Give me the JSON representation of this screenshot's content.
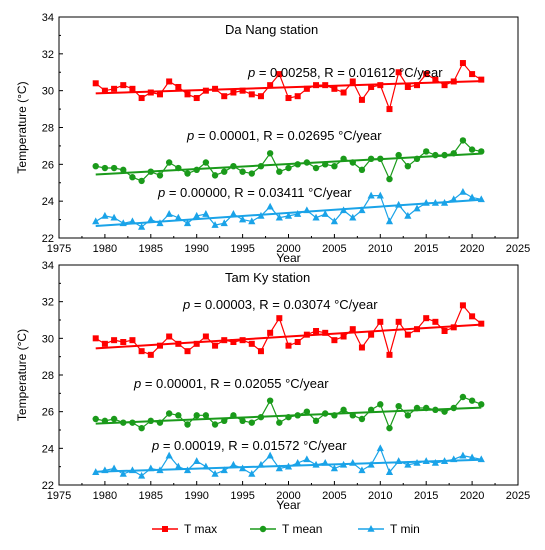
{
  "chart_data": [
    {
      "type": "line",
      "title": "Da Nang station",
      "xlabel": "Year",
      "ylabel": "Temperature (°C)",
      "xlim": [
        1975,
        2025
      ],
      "ylim": [
        22,
        34
      ],
      "xticks": [
        1975,
        1980,
        1985,
        1990,
        1995,
        2000,
        2005,
        2010,
        2015,
        2020,
        2025
      ],
      "yticks": [
        22,
        24,
        26,
        28,
        30,
        32,
        34
      ],
      "x": [
        1979,
        1980,
        1981,
        1982,
        1983,
        1984,
        1985,
        1986,
        1987,
        1988,
        1989,
        1990,
        1991,
        1992,
        1993,
        1994,
        1995,
        1996,
        1997,
        1998,
        1999,
        2000,
        2001,
        2002,
        2003,
        2004,
        2005,
        2006,
        2007,
        2008,
        2009,
        2010,
        2011,
        2012,
        2013,
        2014,
        2015,
        2016,
        2017,
        2018,
        2019,
        2020,
        2021
      ],
      "series": [
        {
          "name": "T max",
          "color": "#ff0000",
          "marker": "square",
          "values": [
            30.4,
            30.0,
            30.1,
            30.3,
            30.1,
            29.6,
            29.9,
            29.8,
            30.5,
            30.2,
            29.8,
            29.6,
            30.0,
            30.1,
            29.7,
            29.9,
            30.0,
            29.8,
            29.7,
            30.3,
            30.9,
            29.6,
            29.7,
            30.1,
            30.3,
            30.3,
            30.1,
            29.9,
            30.5,
            29.5,
            30.2,
            30.3,
            29.0,
            31.0,
            30.2,
            30.3,
            30.9,
            30.6,
            30.3,
            30.5,
            31.5,
            30.9,
            30.6
          ],
          "trend": {
            "p_label": "p",
            "p_value": "= 0.00258",
            "r_label": "R = 0.01612",
            "unit": "°C/year",
            "start": 29.85,
            "end": 30.52
          }
        },
        {
          "name": "T mean",
          "color": "#1a9a1a",
          "marker": "circle",
          "values": [
            25.9,
            25.8,
            25.8,
            25.7,
            25.3,
            25.1,
            25.6,
            25.4,
            26.1,
            25.8,
            25.5,
            25.7,
            26.1,
            25.4,
            25.6,
            25.9,
            25.6,
            25.5,
            25.9,
            26.6,
            25.6,
            25.8,
            26.0,
            26.1,
            25.8,
            26.0,
            25.9,
            26.3,
            26.1,
            25.7,
            26.3,
            26.3,
            25.2,
            26.5,
            25.9,
            26.3,
            26.7,
            26.5,
            26.5,
            26.6,
            27.3,
            26.8,
            26.7
          ],
          "trend": {
            "p_label": "p",
            "p_value": "= 0.00001",
            "r_label": "R = 0.02695",
            "unit": "°C/year",
            "start": 25.45,
            "end": 26.58
          }
        },
        {
          "name": "T min",
          "color": "#1aa3e8",
          "marker": "triangle",
          "values": [
            22.9,
            23.2,
            23.1,
            22.8,
            22.9,
            22.6,
            23.0,
            22.8,
            23.3,
            23.1,
            22.8,
            23.2,
            23.3,
            22.7,
            22.8,
            23.3,
            23.0,
            22.9,
            23.2,
            23.7,
            23.1,
            23.2,
            23.3,
            23.5,
            23.1,
            23.3,
            22.9,
            23.5,
            23.1,
            23.5,
            24.3,
            24.3,
            22.9,
            23.8,
            23.2,
            23.6,
            23.9,
            23.9,
            23.9,
            24.1,
            24.5,
            24.2,
            24.1
          ],
          "trend": {
            "p_label": "p",
            "p_value": "= 0.00000",
            "r_label": "R = 0.03411",
            "unit": "°C/year",
            "start": 22.65,
            "end": 24.08
          }
        }
      ]
    },
    {
      "type": "line",
      "title": "Tam Ky station",
      "xlabel": "Year",
      "ylabel": "Temperature (°C)",
      "xlim": [
        1975,
        2025
      ],
      "ylim": [
        22,
        34
      ],
      "xticks": [
        1975,
        1980,
        1985,
        1990,
        1995,
        2000,
        2005,
        2010,
        2015,
        2020,
        2025
      ],
      "yticks": [
        22,
        24,
        26,
        28,
        30,
        32,
        34
      ],
      "x": [
        1979,
        1980,
        1981,
        1982,
        1983,
        1984,
        1985,
        1986,
        1987,
        1988,
        1989,
        1990,
        1991,
        1992,
        1993,
        1994,
        1995,
        1996,
        1997,
        1998,
        1999,
        2000,
        2001,
        2002,
        2003,
        2004,
        2005,
        2006,
        2007,
        2008,
        2009,
        2010,
        2011,
        2012,
        2013,
        2014,
        2015,
        2016,
        2017,
        2018,
        2019,
        2020,
        2021
      ],
      "series": [
        {
          "name": "T max",
          "color": "#ff0000",
          "marker": "square",
          "values": [
            30.0,
            29.7,
            29.9,
            29.8,
            29.9,
            29.3,
            29.1,
            29.6,
            30.1,
            29.7,
            29.3,
            29.7,
            30.1,
            29.6,
            29.9,
            29.8,
            29.9,
            29.7,
            29.3,
            30.3,
            31.1,
            29.6,
            29.8,
            30.2,
            30.4,
            30.3,
            29.9,
            30.1,
            30.5,
            29.5,
            30.2,
            30.9,
            29.1,
            30.9,
            30.2,
            30.5,
            31.1,
            30.9,
            30.4,
            30.6,
            31.8,
            31.2,
            30.8
          ],
          "trend": {
            "p_label": "p",
            "p_value": "= 0.00003",
            "r_label": "R = 0.03074",
            "unit": "°C/year",
            "start": 29.45,
            "end": 30.75
          }
        },
        {
          "name": "T mean",
          "color": "#1a9a1a",
          "marker": "circle",
          "values": [
            25.6,
            25.5,
            25.6,
            25.4,
            25.4,
            25.1,
            25.5,
            25.4,
            25.9,
            25.8,
            25.3,
            25.8,
            25.8,
            25.3,
            25.5,
            25.8,
            25.5,
            25.4,
            25.7,
            26.6,
            25.4,
            25.7,
            25.8,
            26.0,
            25.5,
            25.9,
            25.8,
            26.1,
            25.8,
            25.6,
            26.1,
            26.4,
            25.1,
            26.3,
            25.8,
            26.2,
            26.2,
            26.1,
            26.0,
            26.2,
            26.8,
            26.6,
            26.4
          ],
          "trend": {
            "p_label": "p",
            "p_value": "= 0.00001",
            "r_label": "R = 0.02055",
            "unit": "°C/year",
            "start": 25.35,
            "end": 26.22
          }
        },
        {
          "name": "T min",
          "color": "#1aa3e8",
          "marker": "triangle",
          "values": [
            22.7,
            22.8,
            22.9,
            22.6,
            22.8,
            22.5,
            22.9,
            22.8,
            23.6,
            23.0,
            22.8,
            23.3,
            23.0,
            22.6,
            22.8,
            23.1,
            22.9,
            22.6,
            23.1,
            23.6,
            22.9,
            23.0,
            23.2,
            23.4,
            23.1,
            23.2,
            22.9,
            23.1,
            23.2,
            22.8,
            23.1,
            24.0,
            22.7,
            23.3,
            23.1,
            23.2,
            23.3,
            23.2,
            23.3,
            23.4,
            23.6,
            23.5,
            23.4
          ],
          "trend": {
            "p_label": "p",
            "p_value": "= 0.00019",
            "r_label": "R = 0.01572",
            "unit": "°C/year",
            "start": 22.72,
            "end": 23.38
          }
        }
      ]
    }
  ],
  "legend": {
    "placement": "bottom",
    "items": [
      {
        "label": "T  max",
        "color": "#ff0000",
        "marker": "square"
      },
      {
        "label": "T  mean",
        "color": "#1a9a1a",
        "marker": "circle"
      },
      {
        "label": "T  min",
        "color": "#1aa3e8",
        "marker": "triangle"
      }
    ]
  }
}
